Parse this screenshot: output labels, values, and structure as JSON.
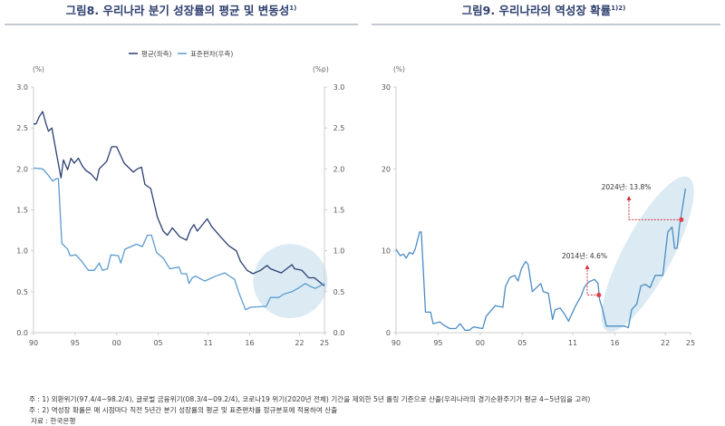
{
  "footnotes": {
    "note1": "주 : 1) 외환위기(97.4/4~98.2/4), 글로벌 금융위기(08.3/4~09.2/4), 코로나19 위기(2020년 전체) 기간을 제외한 5년 롤링 기준으로 산출(우리나라의 경기순환주기가 평균 4~5년임을 고려)",
    "note2": "주 : 2) 역성장 확률은 매 시점마다 직전 5년간 분기 성장률의 평균 및 표준편차를 정규분포에 적용하여 산출",
    "source": "자료 : 한국은행"
  },
  "chart_data": [
    {
      "type": "line",
      "title": "그림8. 우리나라 분기 성장률의 평균 및 변동성",
      "title_sup": "1)",
      "left_unit": "(%)",
      "right_unit": "(%p)",
      "ylim": [
        0,
        3
      ],
      "y_ticks": [
        "0.0",
        "0.5",
        "1.0",
        "1.5",
        "2.0",
        "2.5",
        "3.0"
      ],
      "xlim": [
        1990,
        2025
      ],
      "x_ticks": [
        {
          "v": 1990,
          "label": "90"
        },
        {
          "v": 1995,
          "label": "95"
        },
        {
          "v": 2000,
          "label": "00"
        },
        {
          "v": 2005,
          "label": "05"
        },
        {
          "v": 2011,
          "label": "11"
        },
        {
          "v": 2016,
          "label": "16"
        },
        {
          "v": 2022,
          "label": "22"
        },
        {
          "v": 2025,
          "label": "25"
        }
      ],
      "legend_position": "top-center",
      "grid": false,
      "highlight": "circle around 2016–2025",
      "series": [
        {
          "name": "평균(좌측)",
          "axis": "left",
          "color": "#2b3f73",
          "x": [
            1990,
            1990.3,
            1990.7,
            1991.1,
            1991.5,
            1991.8,
            1992.2,
            1992.7,
            1993.3,
            1993.6,
            1994.1,
            1994.5,
            1994.9,
            1995.4,
            1995.9,
            1996.3,
            1996.9,
            1997.6,
            1997.9,
            1998.8,
            1999.4,
            2000.0,
            2000.9,
            2002.0,
            2002.5,
            2003.0,
            2003.4,
            2004.1,
            2004.9,
            2005.6,
            2006.1,
            2006.7,
            2007.6,
            2008.4,
            2008.9,
            2009.3,
            2009.7,
            2010.9,
            2011.4,
            2012.5,
            2013.5,
            2014.4,
            2014.9,
            2015.7,
            2016.4,
            2017.3,
            2018.1,
            2018.5,
            2019.8,
            2021.1,
            2021.4,
            2022.3,
            2023.1,
            2023.8,
            2024.4,
            2025.0
          ],
          "values": [
            2.55,
            2.55,
            2.64,
            2.7,
            2.55,
            2.46,
            2.5,
            2.22,
            1.89,
            2.11,
            1.99,
            2.13,
            2.07,
            2.13,
            2.03,
            1.98,
            1.94,
            1.86,
            2.0,
            2.09,
            2.27,
            2.27,
            2.07,
            1.96,
            2.0,
            2.02,
            1.81,
            1.76,
            1.41,
            1.24,
            1.19,
            1.28,
            1.17,
            1.13,
            1.26,
            1.32,
            1.24,
            1.39,
            1.3,
            1.17,
            1.06,
            1.0,
            0.87,
            0.76,
            0.72,
            0.76,
            0.82,
            0.78,
            0.73,
            0.83,
            0.78,
            0.76,
            0.67,
            0.67,
            0.62,
            0.57
          ]
        },
        {
          "name": "표준편차(우측)",
          "axis": "right",
          "color": "#5b9bd0",
          "x": [
            1990,
            1991.1,
            1991.8,
            1992.3,
            1992.7,
            1993.0,
            1993.4,
            1994.1,
            1994.4,
            1995.1,
            1995.8,
            1996.6,
            1997.3,
            1997.9,
            1998.3,
            1998.9,
            1999.3,
            2000.2,
            2000.5,
            2001.0,
            2002.4,
            2003.1,
            2003.7,
            2004.2,
            2004.8,
            2005.6,
            2006.4,
            2007.5,
            2007.8,
            2008.4,
            2008.7,
            2009.1,
            2009.5,
            2010.6,
            2011.9,
            2013.0,
            2014.2,
            2014.7,
            2015.5,
            2016.1,
            2017.6,
            2018.0,
            2018.5,
            2019.5,
            2020.1,
            2021.1,
            2021.8,
            2022.7,
            2023.4,
            2023.9,
            2025.0
          ],
          "values": [
            2.01,
            2.0,
            1.92,
            1.85,
            1.88,
            1.88,
            1.09,
            1.02,
            0.94,
            0.95,
            0.87,
            0.76,
            0.76,
            0.85,
            0.76,
            0.78,
            0.95,
            0.94,
            0.85,
            1.02,
            1.08,
            1.05,
            1.19,
            1.19,
            0.98,
            0.91,
            0.78,
            0.8,
            0.72,
            0.72,
            0.6,
            0.67,
            0.69,
            0.63,
            0.69,
            0.73,
            0.65,
            0.49,
            0.28,
            0.31,
            0.32,
            0.32,
            0.43,
            0.43,
            0.47,
            0.5,
            0.54,
            0.6,
            0.56,
            0.54,
            0.6
          ]
        }
      ]
    },
    {
      "type": "line",
      "title": "그림9. 우리나라의 역성장 확률",
      "title_sup": "1)2)",
      "left_unit": "(%)",
      "ylim": [
        0,
        30
      ],
      "y_ticks": [
        "0",
        "10",
        "20",
        "30"
      ],
      "xlim": [
        1990,
        2025
      ],
      "x_ticks": [
        {
          "v": 1990,
          "label": "90"
        },
        {
          "v": 1995,
          "label": "95"
        },
        {
          "v": 2000,
          "label": "00"
        },
        {
          "v": 2005,
          "label": "05"
        },
        {
          "v": 2011,
          "label": "11"
        },
        {
          "v": 2016,
          "label": "16"
        },
        {
          "v": 2022,
          "label": "22"
        },
        {
          "v": 2025,
          "label": "25"
        }
      ],
      "grid": false,
      "highlight": "ellipse around 2016–2024 rise",
      "series": [
        {
          "color": "#4a8cc4",
          "x": [
            1990,
            1990.5,
            1990.9,
            1991.2,
            1991.6,
            1992.0,
            1992.3,
            1992.8,
            1993.0,
            1993.5,
            1994.1,
            1994.4,
            1995.2,
            1995.7,
            1996.4,
            1997.1,
            1997.6,
            1998.2,
            1998.7,
            1999.2,
            2000.3,
            2000.7,
            2001.8,
            2002.7,
            2003.0,
            2003.5,
            2004.1,
            2004.5,
            2004.9,
            2005.4,
            2005.7,
            2006.2,
            2006.6,
            2007.2,
            2007.5,
            2008.1,
            2008.6,
            2008.9,
            2009.5,
            2010.0,
            2010.5,
            2011.3,
            2012.0,
            2012.4,
            2012.9,
            2013.6,
            2014.0,
            2014.2,
            2014.5,
            2015.0,
            2015.8,
            2016.5,
            2017.2,
            2017.6,
            2018.0,
            2018.6,
            2019.1,
            2019.6,
            2020.2,
            2020.8,
            2021.7,
            2022.3,
            2022.8,
            2023.1,
            2023.4,
            2023.7,
            2024.4
          ],
          "values": [
            10.2,
            9.4,
            9.6,
            9.1,
            9.8,
            9.6,
            10.3,
            12.3,
            12.3,
            2.5,
            2.5,
            1.1,
            1.3,
            0.9,
            0.5,
            0.5,
            1.1,
            0.3,
            0.3,
            0.7,
            0.5,
            2.0,
            3.3,
            3.1,
            5.6,
            6.7,
            7.0,
            6.3,
            7.8,
            8.7,
            8.3,
            5.0,
            5.4,
            6.0,
            5.0,
            4.8,
            1.6,
            2.8,
            3.0,
            2.3,
            1.4,
            3.2,
            4.5,
            5.6,
            6.2,
            6.5,
            6.0,
            4.0,
            3.0,
            0.8,
            0.8,
            0.8,
            0.8,
            0.6,
            2.8,
            3.5,
            5.7,
            5.9,
            5.5,
            7.0,
            7.0,
            12.3,
            12.9,
            10.3,
            10.3,
            13.1,
            17.6
          ]
        }
      ],
      "annotations": [
        {
          "label": "2014년: 4.6%",
          "x": 2014.1,
          "y": 4.6
        },
        {
          "label": "2024년: 13.8%",
          "x": 2023.9,
          "y": 13.8
        }
      ]
    }
  ]
}
